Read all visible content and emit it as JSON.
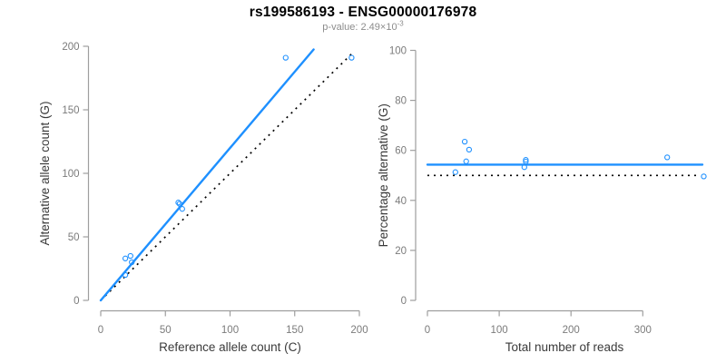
{
  "header": {
    "title": "rs199586193 - ENSG00000176978",
    "subtitle_prefix": "p-value: 2.49×10",
    "subtitle_exponent": "-3"
  },
  "colors": {
    "accent_blue": "#1E90FF",
    "dotted_black": "#000000",
    "axis_line": "#9E9E9E",
    "tick_label": "#7b7b7b",
    "axis_title": "#3a3a3a",
    "subtitle_gray": "#8c8c8c"
  },
  "chart_data": [
    {
      "type": "scatter",
      "panel": "left",
      "xlabel": "Reference allele count (C)",
      "ylabel": "Alternative allele count (G)",
      "xlim": [
        0,
        200
      ],
      "ylim": [
        0,
        200
      ],
      "xticks": [
        0,
        50,
        100,
        150,
        200
      ],
      "yticks": [
        0,
        50,
        100,
        150,
        200
      ],
      "grid": false,
      "legend": null,
      "points": [
        [
          19,
          33
        ],
        [
          23,
          35
        ],
        [
          24,
          30
        ],
        [
          19,
          20
        ],
        [
          60,
          77
        ],
        [
          61,
          76
        ],
        [
          63,
          72
        ],
        [
          143,
          191
        ],
        [
          194,
          191
        ]
      ],
      "lines": [
        {
          "name": "identity-line",
          "style": "dotted",
          "description": "y = x (50% expectation)",
          "points": [
            [
              0,
              0
            ],
            [
              196,
              196
            ]
          ]
        },
        {
          "name": "fit-line",
          "style": "solid",
          "description": "fitted ratio, slope 1.2",
          "points": [
            [
              0,
              0
            ],
            [
              164.6,
              197.5
            ]
          ]
        }
      ]
    },
    {
      "type": "scatter",
      "panel": "right",
      "xlabel": "Total number of reads",
      "ylabel": "Percentage alternative (G)",
      "xlim": [
        0,
        300
      ],
      "ylim": [
        0,
        100
      ],
      "xticks": [
        0,
        100,
        200,
        300
      ],
      "yticks": [
        0,
        20,
        40,
        60,
        80,
        100
      ],
      "grid": false,
      "legend": null,
      "points": [
        [
          52,
          63.5
        ],
        [
          58,
          60.3
        ],
        [
          54,
          55.6
        ],
        [
          39,
          51.3
        ],
        [
          137,
          56.2
        ],
        [
          137,
          55.5
        ],
        [
          135,
          53.3
        ],
        [
          334,
          57.2
        ],
        [
          385,
          49.6
        ]
      ],
      "lines": [
        {
          "name": "null-line",
          "style": "dotted",
          "description": "50% null expectation",
          "points": [
            [
              0,
              50
            ],
            [
              380,
              50
            ]
          ]
        },
        {
          "name": "mean-line",
          "style": "solid",
          "description": "mean percentage 54.3",
          "points": [
            [
              0,
              54.3
            ],
            [
              383,
              54.3
            ]
          ]
        }
      ]
    }
  ]
}
